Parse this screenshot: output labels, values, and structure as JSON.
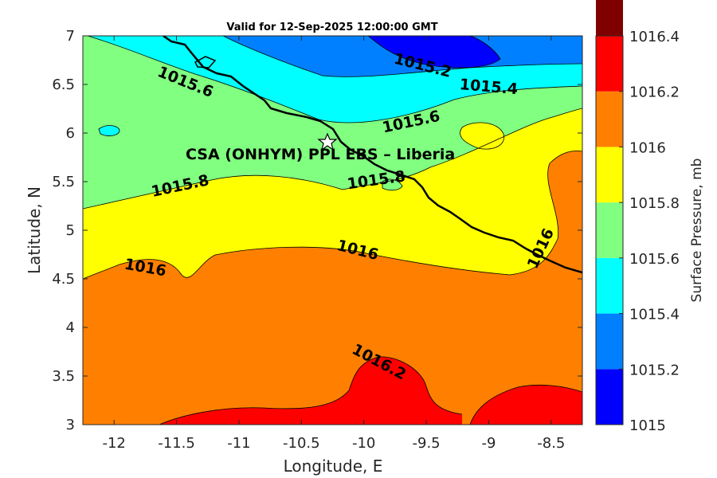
{
  "title": "Valid for 12-Sep-2025 12:00:00 GMT",
  "site_label": "CSA (ONHYM) PPL EBS  – Liberia",
  "marker_icon": "star-icon",
  "x_axis": {
    "label": "Longitude, E",
    "range": [
      -12.25,
      -8.25
    ],
    "ticks": [
      -12,
      -11.5,
      -11,
      -10.5,
      -10,
      -9.5,
      -9,
      -8.5
    ],
    "tick_labels": [
      "-12",
      "-11.5",
      "-11",
      "-10.5",
      "-10",
      "-9.5",
      "-9",
      "-8.5"
    ]
  },
  "y_axis": {
    "label": "Latitude, N",
    "range": [
      3,
      7
    ],
    "ticks": [
      3,
      3.5,
      4,
      4.5,
      5,
      5.5,
      6,
      6.5,
      7
    ],
    "tick_labels": [
      "3",
      "3.5",
      "4",
      "4.5",
      "5",
      "5.5",
      "6",
      "6.5",
      "7"
    ]
  },
  "colorbar": {
    "label": "Surface Pressure, mb",
    "levels": [
      1015,
      1015.2,
      1015.4,
      1015.6,
      1015.8,
      1016,
      1016.2,
      1016.4
    ],
    "level_labels": [
      "1015",
      "1015.2",
      "1015.4",
      "1015.6",
      "1015.8",
      "1016",
      "1016.2",
      "1016.4"
    ],
    "colors": [
      "#0000ff",
      "#0080ff",
      "#00ffff",
      "#80ff80",
      "#ffff00",
      "#ff8000",
      "#ff0000",
      "#800000"
    ]
  },
  "chart_data": {
    "type": "contourf",
    "variable": "Surface Pressure, mb",
    "site": {
      "lon": -10.3,
      "lat": 5.93
    },
    "contour_labels": [
      {
        "text": "1015.2",
        "lon": -9.53,
        "lat": 6.69,
        "angle": 14
      },
      {
        "text": "1015.4",
        "lon": -9.0,
        "lat": 6.47,
        "angle": 5
      },
      {
        "text": "1015.6",
        "lon": -11.43,
        "lat": 6.52,
        "angle": 22
      },
      {
        "text": "1015.6",
        "lon": -9.62,
        "lat": 6.11,
        "angle": -12
      },
      {
        "text": "1015.8",
        "lon": -11.47,
        "lat": 5.45,
        "angle": -12
      },
      {
        "text": "1015.8",
        "lon": -9.9,
        "lat": 5.51,
        "angle": -8
      },
      {
        "text": "1016",
        "lon": -11.75,
        "lat": 4.61,
        "angle": 10
      },
      {
        "text": "1016",
        "lon": -10.05,
        "lat": 4.79,
        "angle": 14
      },
      {
        "text": "1016",
        "lon": -8.58,
        "lat": 4.81,
        "angle": -65
      },
      {
        "text": "1016.2",
        "lon": -9.88,
        "lat": 3.64,
        "angle": 28
      }
    ]
  }
}
